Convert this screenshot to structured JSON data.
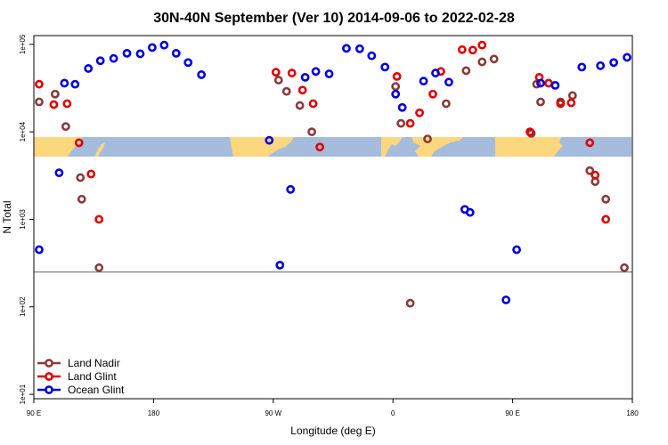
{
  "chart_data": {
    "type": "scatter",
    "title": "30N-40N September (Ver 10)   2014-09-06 to 2022-02-28",
    "xlabel": "Longitude (deg E)",
    "ylabel": "N Total",
    "xlim": [
      90,
      540
    ],
    "ylim_log10": [
      0.95,
      5.1
    ],
    "log_y": true,
    "x_ticks": [
      {
        "x": 90,
        "label": "90 E"
      },
      {
        "x": 180,
        "label": "180"
      },
      {
        "x": 270,
        "label": "90 W"
      },
      {
        "x": 360,
        "label": "0"
      },
      {
        "x": 450,
        "label": "90 E"
      },
      {
        "x": 540,
        "label": "180"
      }
    ],
    "y_ticks": [
      {
        "v": 10,
        "label": "1e+01"
      },
      {
        "v": 100,
        "label": "1e+02"
      },
      {
        "v": 1000,
        "label": "1e+03"
      },
      {
        "v": 10000,
        "label": "1e+04"
      },
      {
        "v": 100000,
        "label": "1e+05"
      }
    ],
    "reference_line": 250,
    "map_band": {
      "lat_range": "30N-40N",
      "ocean_color": "#a5bcdc",
      "land_color": "#fcd77e"
    },
    "legend": {
      "position": "bottom-left"
    },
    "series": [
      {
        "name": "Land Nadir",
        "color": "#8b3a3a",
        "points": [
          [
            94,
            22000
          ],
          [
            106,
            27000
          ],
          [
            114,
            11500
          ],
          [
            125,
            3000
          ],
          [
            126,
            1700
          ],
          [
            139,
            280
          ],
          [
            274,
            39000
          ],
          [
            280,
            29000
          ],
          [
            290,
            20000
          ],
          [
            299,
            10000
          ],
          [
            362,
            33000
          ],
          [
            366,
            12500
          ],
          [
            373,
            110
          ],
          [
            386,
            8300
          ],
          [
            400,
            21000
          ],
          [
            415,
            50000
          ],
          [
            427,
            63000
          ],
          [
            436,
            68000
          ],
          [
            464,
            9600
          ],
          [
            468,
            35000
          ],
          [
            471,
            22000
          ],
          [
            486,
            22000
          ],
          [
            495,
            26000
          ],
          [
            508,
            3600
          ],
          [
            512,
            2700
          ],
          [
            520,
            1700
          ],
          [
            534,
            280
          ]
        ]
      },
      {
        "name": "Land Glint",
        "color": "#e00000",
        "points": [
          [
            94,
            35000
          ],
          [
            105,
            20500
          ],
          [
            115,
            21000
          ],
          [
            124,
            7500
          ],
          [
            133,
            3300
          ],
          [
            139,
            1000
          ],
          [
            272,
            48000
          ],
          [
            284,
            47000
          ],
          [
            292,
            30000
          ],
          [
            300,
            21000
          ],
          [
            305,
            6700
          ],
          [
            363,
            43000
          ],
          [
            373,
            12500
          ],
          [
            380,
            16500
          ],
          [
            390,
            27000
          ],
          [
            396,
            49000
          ],
          [
            412,
            87000
          ],
          [
            420,
            86000
          ],
          [
            427,
            98000
          ],
          [
            463,
            10000
          ],
          [
            470,
            42000
          ],
          [
            477,
            36000
          ],
          [
            486,
            21000
          ],
          [
            494,
            21500
          ],
          [
            508,
            7500
          ],
          [
            512,
            3200
          ],
          [
            520,
            1000
          ]
        ]
      },
      {
        "name": "Ocean Glint",
        "color": "#0000e0",
        "points": [
          [
            94,
            450
          ],
          [
            109,
            3400
          ],
          [
            113,
            36000
          ],
          [
            121,
            35000
          ],
          [
            131,
            53000
          ],
          [
            140,
            65000
          ],
          [
            150,
            69000
          ],
          [
            160,
            79000
          ],
          [
            170,
            78000
          ],
          [
            179,
            92000
          ],
          [
            188,
            98000
          ],
          [
            197,
            79000
          ],
          [
            206,
            62000
          ],
          [
            216,
            45000
          ],
          [
            267,
            8000
          ],
          [
            275,
            300
          ],
          [
            283,
            2200
          ],
          [
            294,
            42000
          ],
          [
            302,
            49000
          ],
          [
            312,
            46000
          ],
          [
            325,
            90000
          ],
          [
            335,
            89000
          ],
          [
            344,
            74000
          ],
          [
            354,
            55000
          ],
          [
            362,
            27000
          ],
          [
            367,
            19000
          ],
          [
            383,
            38000
          ],
          [
            392,
            47000
          ],
          [
            402,
            37000
          ],
          [
            414,
            1300
          ],
          [
            418,
            1200
          ],
          [
            445,
            120
          ],
          [
            453,
            450
          ],
          [
            471,
            36000
          ],
          [
            482,
            34000
          ],
          [
            502,
            55000
          ],
          [
            516,
            57000
          ],
          [
            526,
            62000
          ],
          [
            536,
            71000
          ]
        ]
      }
    ]
  }
}
